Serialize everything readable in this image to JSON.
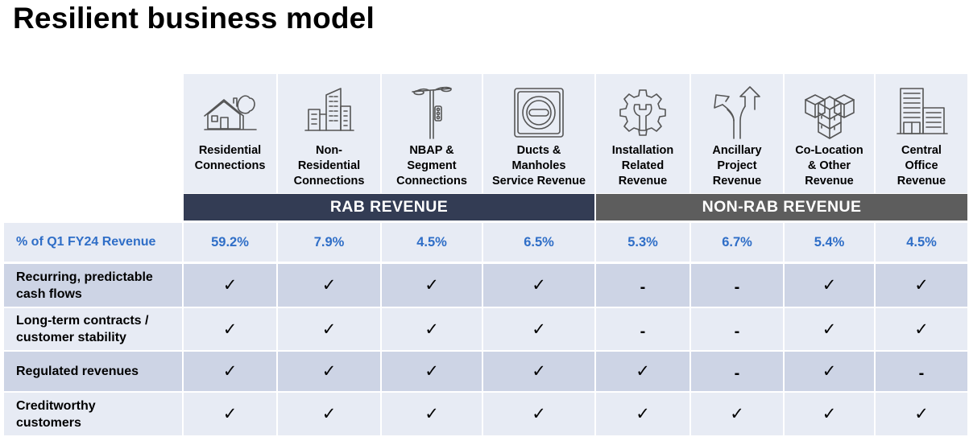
{
  "title": "Resilient business model",
  "columns": [
    {
      "label": "Residential Connections",
      "label_lines": [
        "Residential",
        "Connections"
      ],
      "icon": "house-icon",
      "group": "RAB"
    },
    {
      "label": "Non-Residential Connections",
      "label_lines": [
        "Non-",
        "Residential",
        "Connections"
      ],
      "icon": "office-buildings-icon",
      "group": "RAB"
    },
    {
      "label": "NBAP & Segment Connections",
      "label_lines": [
        "NBAP &",
        "Segment",
        "Connections"
      ],
      "icon": "street-light-icon",
      "group": "RAB"
    },
    {
      "label": "Ducts & Manholes Service Revenue",
      "label_lines": [
        "Ducts &",
        "Manholes",
        "Service Revenue"
      ],
      "icon": "manhole-icon",
      "group": "RAB"
    },
    {
      "label": "Installation Related Revenue",
      "label_lines": [
        "Installation",
        "Related",
        "Revenue"
      ],
      "icon": "gear-wrench-icon",
      "group": "NON-RAB"
    },
    {
      "label": "Ancillary Project Revenue",
      "label_lines": [
        "Ancillary",
        "Project",
        "Revenue"
      ],
      "icon": "split-arrows-icon",
      "group": "NON-RAB"
    },
    {
      "label": "Co-Location & Other Revenue",
      "label_lines": [
        "Co-Location",
        "& Other",
        "Revenue"
      ],
      "icon": "server-cubes-icon",
      "group": "NON-RAB"
    },
    {
      "label": "Central Office Revenue",
      "label_lines": [
        "Central",
        "Office",
        "Revenue"
      ],
      "icon": "central-office-icon",
      "group": "NON-RAB"
    }
  ],
  "bands": {
    "rab": "RAB REVENUE",
    "non_rab": "NON-RAB REVENUE"
  },
  "revenue_row": {
    "label": "% of Q1 FY24 Revenue",
    "values": [
      "59.2%",
      "7.9%",
      "4.5%",
      "6.5%",
      "5.3%",
      "6.7%",
      "5.4%",
      "4.5%"
    ]
  },
  "rows": [
    {
      "label": "Recurring, predictable cash flows",
      "label_lines": [
        "Recurring, predictable",
        "cash flows"
      ],
      "marks": [
        "✓",
        "✓",
        "✓",
        "✓",
        "-",
        "-",
        "✓",
        "✓"
      ]
    },
    {
      "label": "Long-term contracts / customer stability",
      "label_lines": [
        "Long-term contracts /",
        "customer stability"
      ],
      "marks": [
        "✓",
        "✓",
        "✓",
        "✓",
        "-",
        "-",
        "✓",
        "✓"
      ]
    },
    {
      "label": "Regulated revenues",
      "label_lines": [
        "Regulated revenues"
      ],
      "marks": [
        "✓",
        "✓",
        "✓",
        "✓",
        "✓",
        "-",
        "✓",
        "-"
      ]
    },
    {
      "label": "Creditworthy customers",
      "label_lines": [
        "Creditworthy",
        "customers"
      ],
      "marks": [
        "✓",
        "✓",
        "✓",
        "✓",
        "✓",
        "✓",
        "✓",
        "✓"
      ]
    }
  ],
  "colors": {
    "rab_band": "#333c54",
    "non_rab_band": "#5d5d5d",
    "accent_blue": "#2f6ec7",
    "header_bg": "#e9edf5",
    "row_dark": "#cdd4e5",
    "row_light": "#e7ebf4"
  }
}
